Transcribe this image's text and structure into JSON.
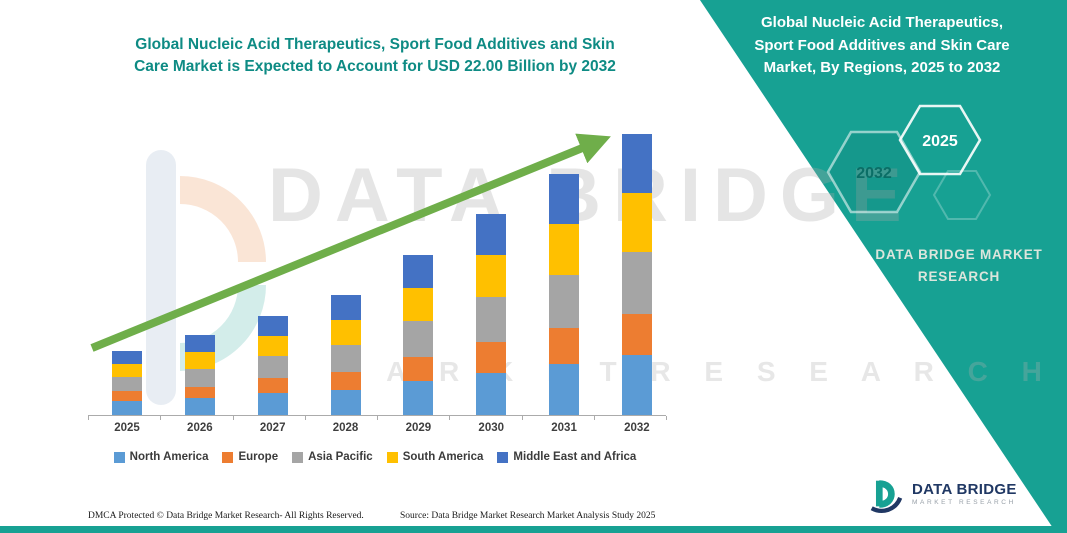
{
  "left": {
    "title_line1": "Global Nucleic Acid Therapeutics, Sport Food Additives and Skin",
    "title_line2": "Care Market is Expected to Account for USD 22.00 Billion by 2032"
  },
  "right_panel": {
    "title_line1": "Global Nucleic Acid Therapeutics,",
    "title_line2": "Sport Food Additives and Skin Care",
    "title_line3": "Market, By Regions, 2025 to 2032",
    "hex_back_label": "2032",
    "hex_front_label": "2025",
    "brand_line1": "DATA BRIDGE MARKET",
    "brand_line2": "RESEARCH"
  },
  "watermark": {
    "big_text": "DATA BRIDGE",
    "sub_text": "M A R K E T    R E S E A R C H"
  },
  "logo": {
    "name": "DATA BRIDGE",
    "tagline": "MARKET RESEARCH"
  },
  "footer": {
    "dmca": "DMCA Protected © Data Bridge Market Research-  All Rights Reserved.",
    "source": "Source: Data Bridge Market Research  Market Analysis Study 2025"
  },
  "colors": {
    "teal": "#17A193",
    "title_teal": "#0E8B84",
    "arrow_green": "#6FAE4A"
  },
  "chart_data": {
    "type": "bar",
    "stacked": true,
    "title": "Global Nucleic Acid Therapeutics, Sport Food Additives and Skin Care Market is Expected to Account for USD 22.00 Billion by 2032",
    "unit": "USD Billion",
    "categories": [
      "2025",
      "2026",
      "2027",
      "2028",
      "2029",
      "2030",
      "2031",
      "2032"
    ],
    "series": [
      {
        "name": "North America",
        "color": "#5B9BD5",
        "values": [
          1.1,
          1.3,
          1.7,
          2.0,
          2.7,
          3.3,
          4.0,
          4.7
        ]
      },
      {
        "name": "Europe",
        "color": "#ED7D31",
        "values": [
          0.8,
          0.9,
          1.2,
          1.4,
          1.9,
          2.4,
          2.8,
          3.2
        ]
      },
      {
        "name": "Asia Pacific",
        "color": "#A5A5A5",
        "values": [
          1.1,
          1.4,
          1.7,
          2.1,
          2.8,
          3.5,
          4.2,
          4.9
        ]
      },
      {
        "name": "South America",
        "color": "#FFC000",
        "values": [
          1.0,
          1.3,
          1.6,
          2.0,
          2.6,
          3.3,
          4.0,
          4.6
        ]
      },
      {
        "name": "Middle East and Africa",
        "color": "#4472C4",
        "values": [
          1.0,
          1.3,
          1.6,
          2.0,
          2.6,
          3.2,
          3.9,
          4.6
        ]
      }
    ],
    "totals": [
      5.0,
      6.2,
      7.8,
      9.5,
      12.6,
      15.7,
      18.9,
      22.0
    ],
    "ylim": [
      0,
      23
    ],
    "xlabel": "",
    "ylabel": "",
    "grid": false,
    "legend_position": "bottom",
    "annotations": [
      "upward green trend arrow from 2025 to 2032"
    ]
  }
}
